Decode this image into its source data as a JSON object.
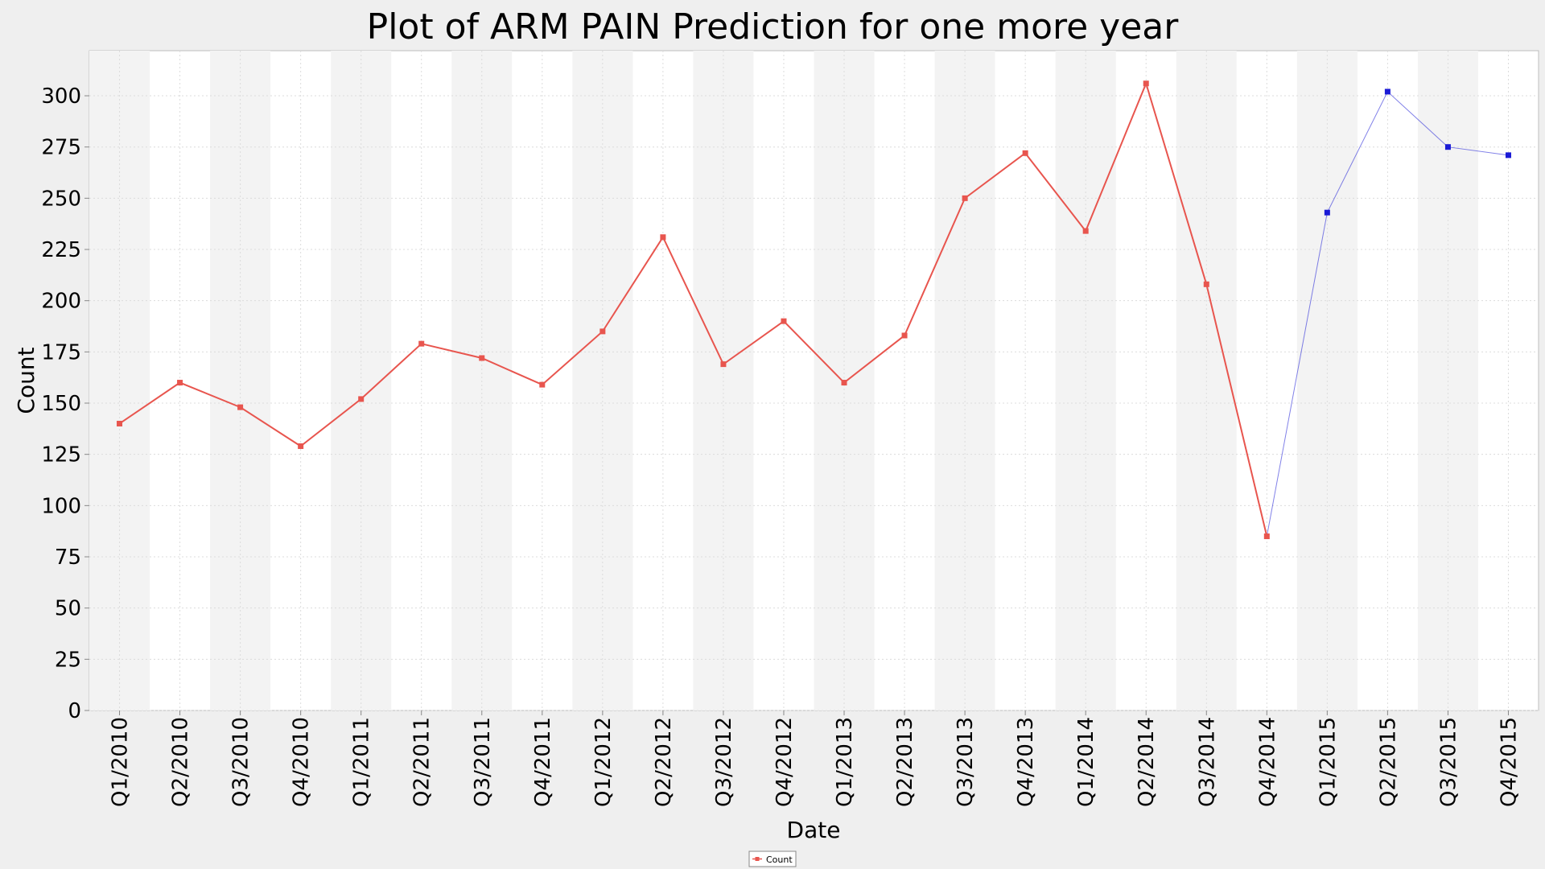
{
  "chart_data": {
    "type": "line",
    "title": "Plot of ARM PAIN Prediction for one more year",
    "xlabel": "Date",
    "ylabel": "Count",
    "ylim": [
      0,
      322
    ],
    "yticks": [
      0,
      25,
      50,
      75,
      100,
      125,
      150,
      175,
      200,
      225,
      250,
      275,
      300
    ],
    "grid": true,
    "legend_position": "bottom-center",
    "categories": [
      "Q1/2010",
      "Q2/2010",
      "Q3/2010",
      "Q4/2010",
      "Q1/2011",
      "Q2/2011",
      "Q3/2011",
      "Q4/2011",
      "Q1/2012",
      "Q2/2012",
      "Q3/2012",
      "Q4/2012",
      "Q1/2013",
      "Q2/2013",
      "Q3/2013",
      "Q4/2013",
      "Q1/2014",
      "Q2/2014",
      "Q3/2014",
      "Q4/2014",
      "Q1/2015",
      "Q2/2015",
      "Q3/2015",
      "Q4/2015"
    ],
    "series": [
      {
        "name": "Count",
        "color": "#e8554e",
        "x": [
          "Q1/2010",
          "Q2/2010",
          "Q3/2010",
          "Q4/2010",
          "Q1/2011",
          "Q2/2011",
          "Q3/2011",
          "Q4/2011",
          "Q1/2012",
          "Q2/2012",
          "Q3/2012",
          "Q4/2012",
          "Q1/2013",
          "Q2/2013",
          "Q3/2013",
          "Q4/2013",
          "Q1/2014",
          "Q2/2014",
          "Q3/2014",
          "Q4/2014"
        ],
        "values": [
          140,
          160,
          148,
          129,
          152,
          179,
          172,
          159,
          185,
          231,
          169,
          190,
          160,
          183,
          250,
          272,
          234,
          306,
          208,
          85
        ]
      },
      {
        "name": "",
        "color": "#1a1ad6",
        "x": [
          "Q4/2014",
          "Q1/2015",
          "Q2/2015",
          "Q3/2015",
          "Q4/2015"
        ],
        "values": [
          85,
          243,
          302,
          275,
          271
        ]
      }
    ],
    "colors": {
      "background": "#efefef",
      "plot_background": "#ffffff",
      "band": "#f3f3f3",
      "gridline": "#dcdcdc"
    }
  }
}
